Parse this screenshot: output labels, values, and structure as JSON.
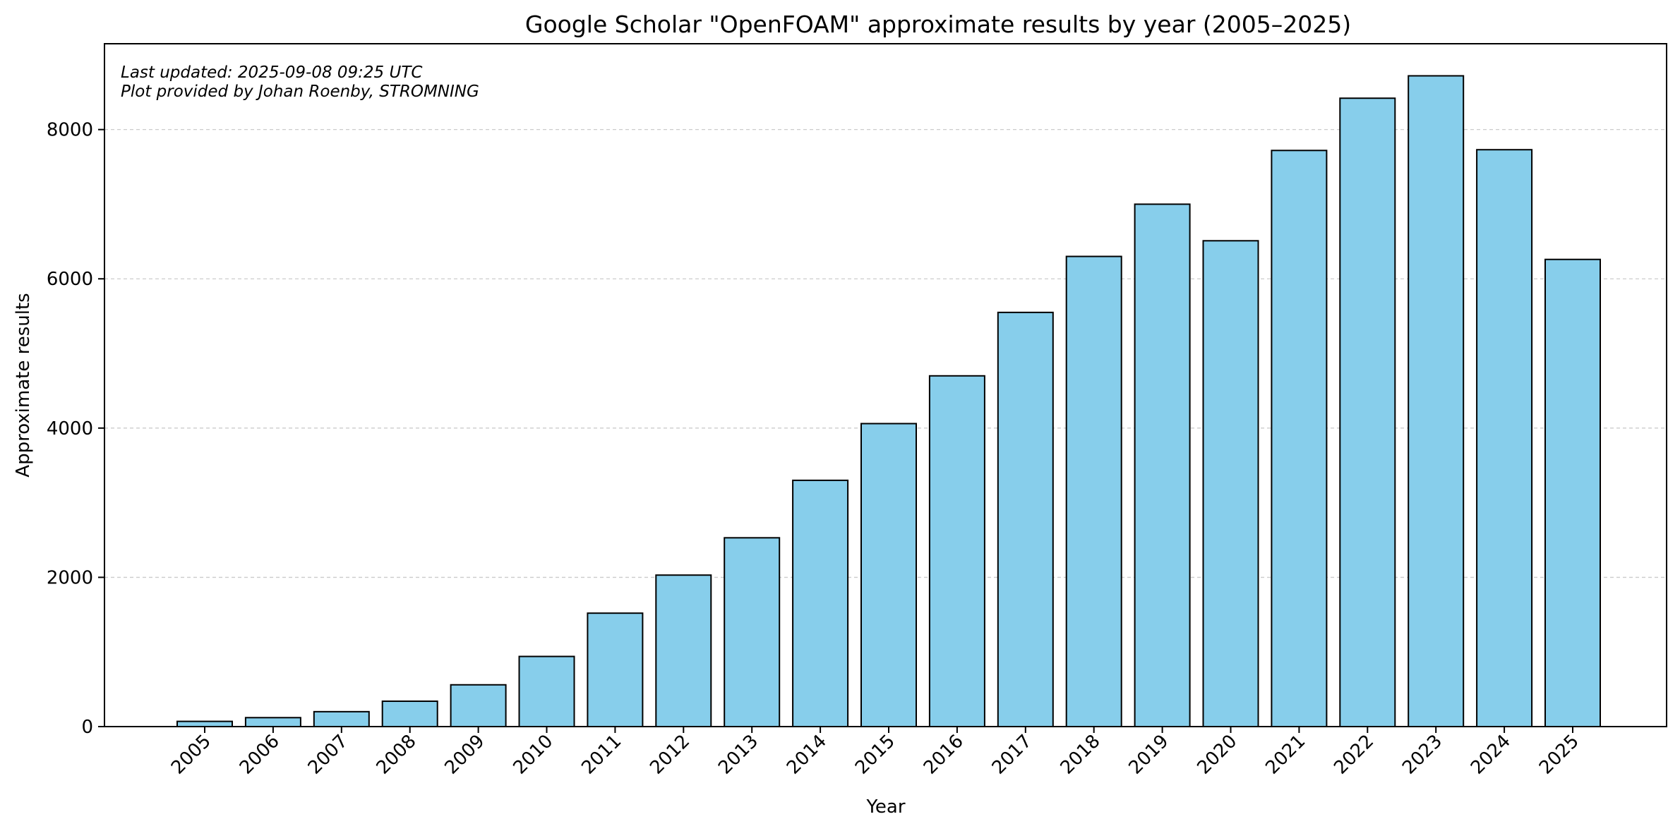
{
  "chart_data": {
    "type": "bar",
    "title": "Google Scholar \"OpenFOAM\" approximate results by year (2005–2025)",
    "xlabel": "Year",
    "ylabel": "Approximate results",
    "categories": [
      "2005",
      "2006",
      "2007",
      "2008",
      "2009",
      "2010",
      "2011",
      "2012",
      "2013",
      "2014",
      "2015",
      "2016",
      "2017",
      "2018",
      "2019",
      "2020",
      "2021",
      "2022",
      "2023",
      "2024",
      "2025"
    ],
    "values": [
      70,
      120,
      200,
      340,
      560,
      940,
      1520,
      2030,
      2530,
      3300,
      4060,
      4700,
      5550,
      6300,
      7000,
      6510,
      7720,
      8420,
      8720,
      7730,
      6260
    ],
    "ylim": [
      0,
      9150
    ],
    "yticks": [
      0,
      2000,
      4000,
      6000,
      8000
    ],
    "grid": "y dashed",
    "bar_color": "#87ceeb",
    "bar_edge_color": "#000000",
    "annotations": [
      "Last updated: 2025-09-08 09:25 UTC",
      "Plot provided by Johan Roenby, STROMNING"
    ]
  }
}
